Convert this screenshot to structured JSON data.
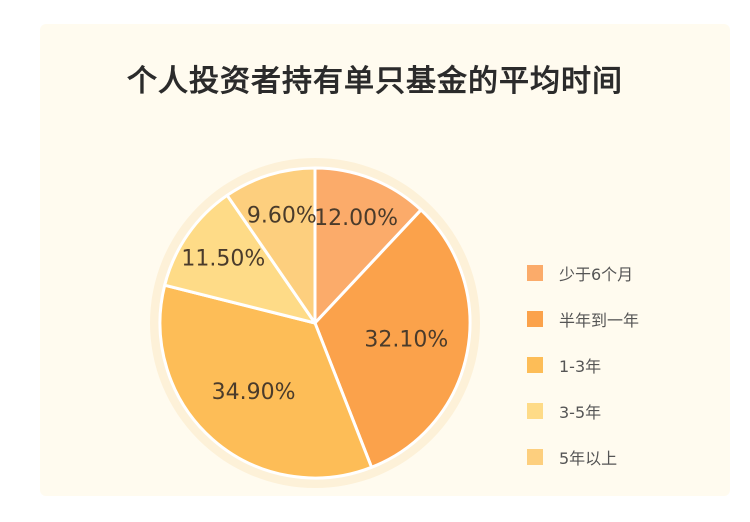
{
  "title": "个人投资者持有单只基金的平均时间",
  "chart_data": {
    "type": "pie",
    "categories": [
      "少于6个月",
      "半年到一年",
      "1-3年",
      "3-5年",
      "5年以上"
    ],
    "values": [
      12.0,
      32.1,
      34.9,
      11.5,
      9.6
    ],
    "labels": [
      "12.00%",
      "32.10%",
      "34.90%",
      "11.50%",
      "9.60%"
    ],
    "colors": [
      "#fbab6a",
      "#fba24b",
      "#fdbd57",
      "#fedb87",
      "#fdcf7e"
    ],
    "legend_position": "right",
    "start_angle": "top",
    "direction": "clockwise"
  }
}
